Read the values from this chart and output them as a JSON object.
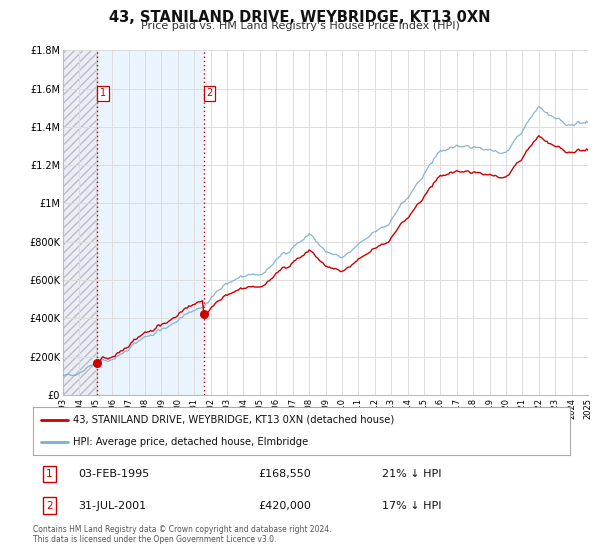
{
  "title": "43, STANILAND DRIVE, WEYBRIDGE, KT13 0XN",
  "subtitle": "Price paid vs. HM Land Registry's House Price Index (HPI)",
  "legend_label_red": "43, STANILAND DRIVE, WEYBRIDGE, KT13 0XN (detached house)",
  "legend_label_blue": "HPI: Average price, detached house, Elmbridge",
  "transaction1_date": "03-FEB-1995",
  "transaction1_price": "£168,550",
  "transaction1_hpi": "21% ↓ HPI",
  "transaction2_date": "31-JUL-2001",
  "transaction2_price": "£420,000",
  "transaction2_hpi": "17% ↓ HPI",
  "footnote": "Contains HM Land Registry data © Crown copyright and database right 2024.\nThis data is licensed under the Open Government Licence v3.0.",
  "xmin": 1993,
  "xmax": 2025,
  "ymin": 0,
  "ymax": 1800000,
  "transaction1_x": 1995.09,
  "transaction1_y": 168550,
  "transaction2_x": 2001.58,
  "transaction2_y": 420000,
  "bg_color": "#ffffff",
  "plot_bg_color": "#ffffff",
  "red_color": "#cc0000",
  "blue_color": "#7aadd4",
  "grid_color": "#dddddd",
  "yticks": [
    0,
    200000,
    400000,
    600000,
    800000,
    1000000,
    1200000,
    1400000,
    1600000,
    1800000
  ],
  "ytick_labels": [
    "£0",
    "£200K",
    "£400K",
    "£600K",
    "£800K",
    "£1M",
    "£1.2M",
    "£1.4M",
    "£1.6M",
    "£1.8M"
  ]
}
